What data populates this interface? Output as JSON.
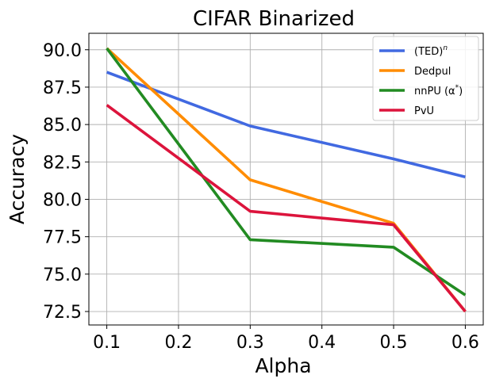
{
  "chart_data": {
    "type": "line",
    "title": "CIFAR Binarized",
    "xlabel": "Alpha",
    "ylabel": "Accuracy",
    "x": [
      0.1,
      0.3,
      0.5,
      0.6
    ],
    "xlim": [
      0.075,
      0.625
    ],
    "ylim": [
      71.6,
      91.1
    ],
    "xticks": [
      0.1,
      0.2,
      0.3,
      0.4,
      0.5,
      0.6
    ],
    "xtick_labels": [
      "0.1",
      "0.2",
      "0.3",
      "0.4",
      "0.5",
      "0.6"
    ],
    "yticks": [
      72.5,
      75.0,
      77.5,
      80.0,
      82.5,
      85.0,
      87.5,
      90.0
    ],
    "ytick_labels": [
      "72.5",
      "75.0",
      "77.5",
      "80.0",
      "82.5",
      "85.0",
      "87.5",
      "90.0"
    ],
    "grid": true,
    "legend_position": "top-right",
    "series": [
      {
        "name": "(TED)",
        "name_sup": "n",
        "color": "#4169e1",
        "values": [
          88.5,
          84.9,
          82.7,
          81.5
        ]
      },
      {
        "name": "Dedpul",
        "name_sup": "",
        "color": "#ff8c00",
        "values": [
          90.1,
          81.3,
          78.4,
          72.5
        ]
      },
      {
        "name": "nnPU (α",
        "name_sup": "*",
        "name_suffix": ")",
        "color": "#228b22",
        "values": [
          90.1,
          77.3,
          76.8,
          73.6
        ]
      },
      {
        "name": "PvU",
        "name_sup": "",
        "color": "#dc143c",
        "values": [
          86.3,
          79.2,
          78.3,
          72.5
        ]
      }
    ]
  }
}
